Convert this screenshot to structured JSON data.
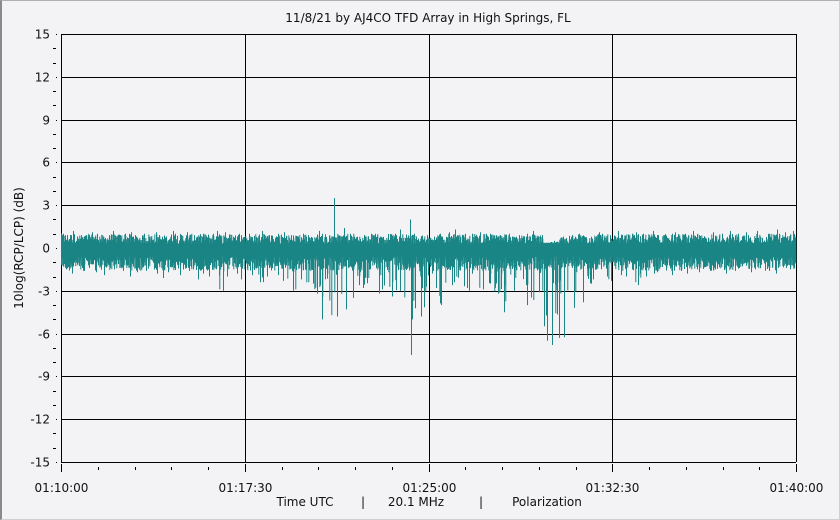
{
  "chart_data": {
    "type": "line",
    "title": "11/8/21  by  AJ4CO TFD Array  in  High Springs, FL",
    "ylabel": "10log(RCP/LCP) (dB)",
    "xlabel": "Time UTC",
    "footer": [
      "Time UTC",
      "|",
      "20.1 MHz",
      "|",
      "Polarization"
    ],
    "ylim": [
      -15,
      15
    ],
    "yticks": [
      15,
      12,
      9,
      6,
      3,
      0,
      -3,
      -6,
      -9,
      -12,
      -15
    ],
    "xlim_minutes": [
      0,
      30
    ],
    "xticks": [
      "01:10:00",
      "01:17:30",
      "01:25:00",
      "01:32:30",
      "01:40:00"
    ],
    "grid": true,
    "series_color": "#1a8585",
    "bin_seconds": 20,
    "series_envelope_min": [
      -1.5,
      -1.8,
      -1.6,
      -1.4,
      -1.7,
      -1.9,
      -1.5,
      -1.6,
      -2.0,
      -1.7,
      -1.6,
      -1.8,
      -2.1,
      -1.7,
      -1.9,
      -1.6,
      -2.2,
      -1.8,
      -2.0,
      -3.0,
      -2.0,
      -1.8,
      -2.2,
      -1.9,
      -2.4,
      -2.0,
      -1.9,
      -2.3,
      -3.0,
      -2.2,
      -2.5,
      -3.2,
      -5.0,
      -4.8,
      -4.3,
      -3.5,
      -2.6,
      -2.8,
      -3.2,
      -2.9,
      -3.4,
      -3.0,
      -7.5,
      -5.0,
      -4.8,
      -2.8,
      -4.0,
      -2.6,
      -2.4,
      -2.8,
      -3.0,
      -2.9,
      -2.5,
      -3.2,
      -4.5,
      -3.0,
      -2.6,
      -4.0,
      -3.1,
      -6.5,
      -6.8,
      -6.3,
      -4.2,
      -3.8,
      -2.5,
      -2.2,
      -2.0,
      -2.3,
      -1.9,
      -2.0,
      -2.6,
      -2.0,
      -1.8,
      -1.7,
      -1.9,
      -1.6,
      -1.8,
      -1.5,
      -1.7,
      -1.6,
      -1.5,
      -1.8,
      -1.6,
      -1.4,
      -1.7,
      -1.5,
      -1.6,
      -1.8,
      -1.4,
      -1.5
    ],
    "series_envelope_max": [
      1.0,
      1.2,
      0.9,
      1.1,
      1.0,
      0.9,
      1.2,
      1.0,
      1.1,
      0.9,
      1.0,
      1.1,
      0.9,
      1.2,
      1.0,
      1.1,
      0.9,
      1.0,
      1.0,
      1.2,
      1.1,
      1.0,
      0.9,
      1.0,
      1.2,
      0.9,
      1.0,
      1.1,
      0.9,
      1.0,
      0.9,
      1.2,
      1.0,
      3.5,
      1.4,
      1.0,
      0.8,
      0.9,
      1.0,
      0.8,
      1.0,
      1.3,
      2.0,
      1.0,
      0.9,
      0.8,
      1.0,
      1.1,
      1.3,
      1.0,
      1.0,
      1.1,
      1.0,
      0.9,
      1.0,
      0.8,
      0.9,
      1.2,
      0.9,
      0.4,
      0.5,
      0.8,
      0.9,
      1.0,
      0.8,
      1.1,
      1.0,
      0.9,
      1.2,
      1.0,
      1.1,
      1.0,
      1.2,
      0.9,
      1.0,
      1.1,
      1.0,
      1.2,
      0.9,
      1.1,
      1.0,
      1.2,
      1.0,
      1.1,
      0.9,
      1.2,
      1.0,
      1.3,
      1.1,
      1.2
    ]
  }
}
